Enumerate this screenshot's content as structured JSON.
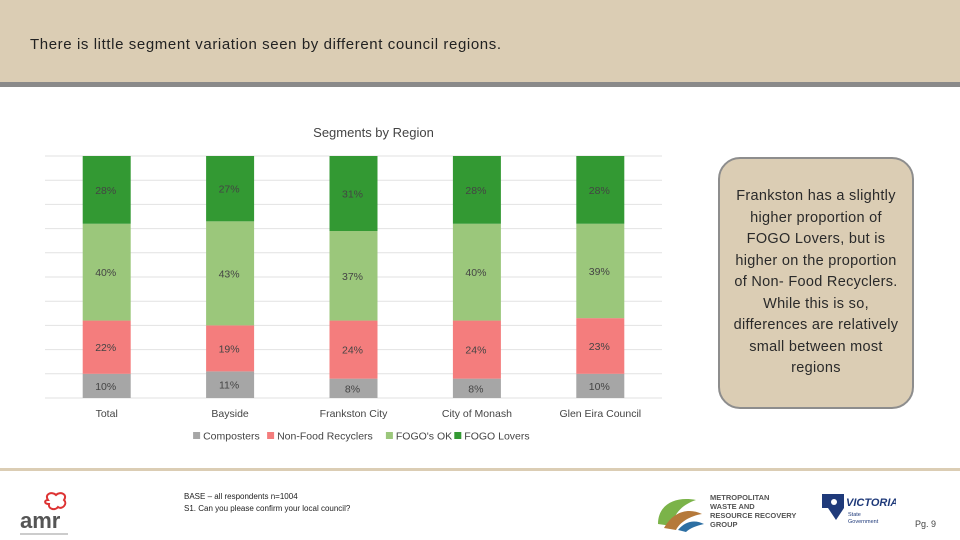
{
  "header": {
    "title": "There is little segment variation seen by different council regions."
  },
  "callout": {
    "text": "Frankston has a slightly higher proportion of FOGO Lovers, but is higher on the proportion of Non- Food Recyclers. While this is so, differences are relatively small between most regions"
  },
  "footer": {
    "base_line1": "BASE – all respondents n=1004",
    "base_line2": "S1. Can you please confirm your local council?",
    "page": "Pg. 9",
    "amr_logo_text": "amr",
    "mwrrg_logo_lines": [
      "METROPOLITAN",
      "WASTE AND",
      "RESOURCE RECOVERY",
      "GROUP"
    ],
    "vic_logo_text": "VICTORIA",
    "vic_logo_sub": [
      "State",
      "Government"
    ]
  },
  "colors": {
    "composters": "#a6a6a6",
    "non_food_recyclers": "#f47d7d",
    "fogos_ok": "#9bc77b",
    "fogo_lovers": "#339933"
  },
  "chart_data": {
    "type": "bar",
    "stacked": true,
    "percent": true,
    "title": "Segments by Region",
    "categories": [
      "Total",
      "Bayside",
      "Frankston City",
      "City of Monash",
      "Glen Eira Council"
    ],
    "series": [
      {
        "name": "Composters",
        "values": [
          10,
          11,
          8,
          8,
          10
        ]
      },
      {
        "name": "Non-Food Recyclers",
        "values": [
          22,
          19,
          24,
          24,
          23
        ]
      },
      {
        "name": "FOGO's OK",
        "values": [
          40,
          43,
          37,
          40,
          39
        ]
      },
      {
        "name": "FOGO Lovers",
        "values": [
          28,
          27,
          31,
          28,
          28
        ]
      }
    ],
    "legend_position": "bottom",
    "ylim": [
      0,
      100
    ],
    "grid": true
  }
}
